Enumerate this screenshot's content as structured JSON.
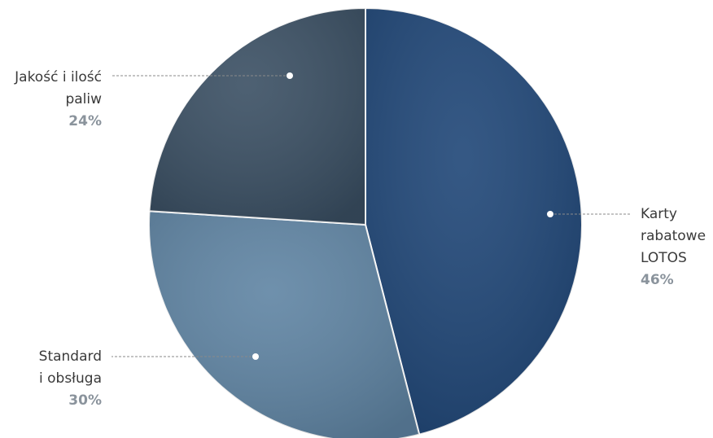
{
  "chart_data": {
    "type": "pie",
    "categories": [
      "Karty\nrabatowe\nLOTOS",
      "Standard\ni obsługa",
      "Jakość i ilość\npaliw"
    ],
    "values": [
      46,
      30,
      24
    ],
    "value_labels": [
      "46%",
      "30%",
      "24%"
    ],
    "colors": [
      "#1f4677",
      "#5f84a3",
      "#3a4f63"
    ]
  }
}
